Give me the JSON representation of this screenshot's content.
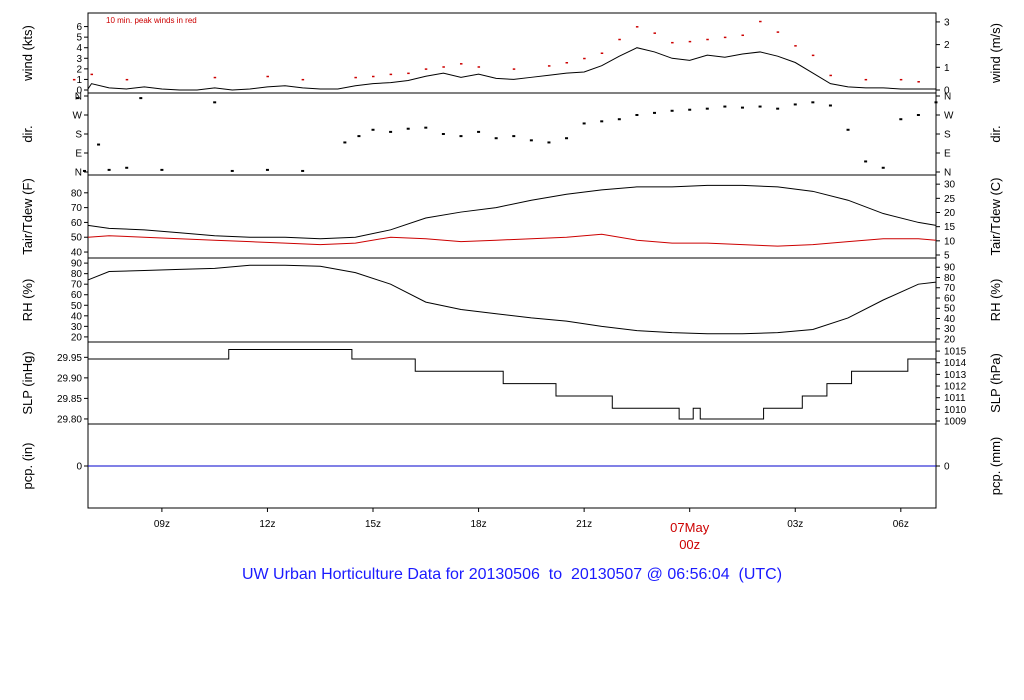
{
  "footer": {
    "title": "UW Urban Horticulture Data for 20130506  to  20130507 @ 06:56:04  (UTC)"
  },
  "chart_data": [
    {
      "type": "line",
      "id": "wind",
      "ylabel": "wind (kts)",
      "ylabel_right": "wind (m/s)",
      "ylim": [
        0,
        7
      ],
      "yticks": [
        0,
        1,
        2,
        3,
        4,
        5,
        6
      ],
      "yticks_right": [
        "0",
        "1",
        "2",
        "3"
      ],
      "annotation": "10 min. peak winds in red",
      "series": [
        {
          "name": "wind",
          "color": "#000000",
          "x": [
            6.5,
            7.0,
            7.5,
            8.0,
            8.5,
            9.0,
            9.5,
            10.0,
            10.5,
            11.0,
            11.5,
            12.0,
            12.5,
            13.0,
            13.5,
            14.0,
            14.5,
            15.0,
            15.5,
            16.0,
            16.5,
            17.0,
            17.5,
            18.0,
            18.5,
            19.0,
            19.5,
            20.0,
            20.5,
            21.0,
            21.5,
            22.0,
            22.5,
            23.0,
            23.5,
            24.0,
            24.5,
            25.0,
            25.5,
            26.0,
            26.5,
            27.0,
            27.5,
            28.0,
            28.5,
            29.0,
            29.5,
            30.0,
            30.5,
            31.0
          ],
          "y": [
            0.1,
            0.6,
            0.2,
            0.1,
            0.3,
            0.1,
            0.0,
            0.0,
            0.2,
            0.0,
            0.1,
            0.3,
            0.4,
            0.2,
            0.1,
            0.1,
            0.4,
            0.6,
            0.7,
            0.9,
            1.3,
            1.6,
            1.2,
            1.5,
            1.1,
            1.0,
            1.2,
            1.4,
            1.6,
            1.7,
            2.3,
            3.2,
            4.0,
            3.6,
            3.0,
            2.8,
            3.3,
            3.1,
            3.4,
            3.6,
            3.2,
            2.6,
            1.6,
            0.6,
            0.3,
            0.2,
            0.2,
            0.1,
            0.1,
            0.1
          ]
        },
        {
          "name": "10 min. peak winds",
          "color": "#cc0000",
          "style": "points",
          "x": [
            6.5,
            7.0,
            8.0,
            10.5,
            12.0,
            13.0,
            14.5,
            15.0,
            15.5,
            16.0,
            16.5,
            17.0,
            17.5,
            18.0,
            19.0,
            20.0,
            20.5,
            21.0,
            21.5,
            22.0,
            22.5,
            23.0,
            23.5,
            24.0,
            24.5,
            25.0,
            25.5,
            26.0,
            26.5,
            27.0,
            27.5,
            28.0,
            29.0,
            30.0,
            30.5
          ],
          "y": [
            1.0,
            1.5,
            1.0,
            1.2,
            1.3,
            1.0,
            1.2,
            1.3,
            1.5,
            1.6,
            2.0,
            2.2,
            2.5,
            2.2,
            2.0,
            2.3,
            2.6,
            3.0,
            3.5,
            4.8,
            6.0,
            5.4,
            4.5,
            4.6,
            4.8,
            5.0,
            5.2,
            6.5,
            5.5,
            4.2,
            3.3,
            1.4,
            1.0,
            1.0,
            0.8
          ]
        }
      ]
    },
    {
      "type": "scatter",
      "id": "dir",
      "ylabel": "dir.",
      "ylabel_right": "dir.",
      "ylim": [
        0,
        360
      ],
      "yticks": [
        "N",
        "E",
        "S",
        "W",
        "N"
      ],
      "series": [
        {
          "name": "direction",
          "color": "#000000",
          "x": [
            6.6,
            6.8,
            7.2,
            7.5,
            8.0,
            8.4,
            9.0,
            10.5,
            11.0,
            12.0,
            13.0,
            14.2,
            14.6,
            15.0,
            15.5,
            16.0,
            16.5,
            17.0,
            17.5,
            18.0,
            18.5,
            19.0,
            19.5,
            20.0,
            20.5,
            21.0,
            21.5,
            22.0,
            22.5,
            23.0,
            23.5,
            24.0,
            24.5,
            25.0,
            25.5,
            26.0,
            26.5,
            27.0,
            27.5,
            28.0,
            28.5,
            29.0,
            29.5,
            30.0,
            30.5,
            31.0
          ],
          "y": [
            350,
            5,
            130,
            10,
            20,
            350,
            10,
            330,
            5,
            10,
            5,
            140,
            170,
            200,
            190,
            205,
            210,
            180,
            170,
            190,
            160,
            170,
            150,
            140,
            160,
            230,
            240,
            250,
            270,
            280,
            290,
            295,
            300,
            310,
            305,
            310,
            300,
            320,
            330,
            315,
            200,
            50,
            20,
            250,
            270,
            330
          ]
        }
      ]
    },
    {
      "type": "line",
      "id": "temp",
      "ylabel": "Tair/Tdew (F)",
      "ylabel_right": "Tair/Tdew (C)",
      "ylim": [
        38,
        90
      ],
      "yticks": [
        40,
        50,
        60,
        70,
        80
      ],
      "yticks_right": [
        "5",
        "10",
        "15",
        "20",
        "25",
        "30"
      ],
      "series": [
        {
          "name": "Tair",
          "color": "#000000",
          "x": [
            6.5,
            7.5,
            8.5,
            9.5,
            10.5,
            11.5,
            12.5,
            13.5,
            14.5,
            15.5,
            16.5,
            17.5,
            18.5,
            19.5,
            20.5,
            21.5,
            22.5,
            23.5,
            24.5,
            25.5,
            26.5,
            27.5,
            28.5,
            29.5,
            30.5,
            31.0
          ],
          "y": [
            58,
            56,
            55,
            53,
            51,
            50,
            50,
            49,
            50,
            55,
            63,
            67,
            70,
            75,
            79,
            82,
            84,
            84,
            85,
            85,
            84,
            81,
            75,
            66,
            60,
            58
          ]
        },
        {
          "name": "Tdew",
          "color": "#cc0000",
          "x": [
            6.5,
            7.5,
            8.5,
            9.5,
            10.5,
            11.5,
            12.5,
            13.5,
            14.5,
            15.5,
            16.5,
            17.5,
            18.5,
            19.5,
            20.5,
            21.5,
            22.5,
            23.5,
            24.5,
            25.5,
            26.5,
            27.5,
            28.5,
            29.5,
            30.5,
            31.0
          ],
          "y": [
            50,
            51,
            50,
            49,
            48,
            47,
            46,
            45,
            46,
            50,
            49,
            47,
            48,
            49,
            50,
            52,
            48,
            46,
            46,
            45,
            44,
            45,
            47,
            49,
            49,
            48
          ]
        }
      ]
    },
    {
      "type": "line",
      "id": "rh",
      "ylabel": "RH (%)",
      "ylabel_right": "RH (%)",
      "ylim": [
        18,
        92
      ],
      "yticks": [
        20,
        30,
        40,
        50,
        60,
        70,
        80,
        90
      ],
      "yticks_right": [
        "20",
        "30",
        "40",
        "50",
        "60",
        "70",
        "80",
        "90"
      ],
      "series": [
        {
          "name": "RH",
          "color": "#000000",
          "x": [
            6.5,
            7.5,
            8.5,
            9.5,
            10.5,
            11.5,
            12.5,
            13.5,
            14.5,
            15.5,
            16.5,
            17.5,
            18.5,
            19.5,
            20.5,
            21.5,
            22.5,
            23.5,
            24.5,
            25.5,
            26.5,
            27.5,
            28.5,
            29.5,
            30.5,
            31.0
          ],
          "y": [
            74,
            82,
            83,
            84,
            85,
            88,
            88,
            87,
            81,
            70,
            53,
            46,
            42,
            38,
            35,
            30,
            26,
            24,
            23,
            23,
            24,
            27,
            38,
            55,
            70,
            72
          ]
        }
      ]
    },
    {
      "type": "line",
      "id": "slp",
      "ylabel": "SLP (inHg)",
      "ylabel_right": "SLP (hPa)",
      "ylim": [
        29.795,
        29.98
      ],
      "yticks": [
        "29.80",
        "29.85",
        "29.90",
        "29.95"
      ],
      "yticks_right": [
        "1009",
        "1010",
        "1011",
        "1012",
        "1013",
        "1014",
        "1015"
      ],
      "series": [
        {
          "name": "SLP",
          "color": "#000000",
          "style": "step",
          "x": [
            6.5,
            10.9,
            14.4,
            16.2,
            18.7,
            20.2,
            21.8,
            23.7,
            24.1,
            24.3,
            26.1,
            27.2,
            27.9,
            28.6,
            30.2,
            31.0
          ],
          "y": [
            29.946,
            29.969,
            29.946,
            29.916,
            29.886,
            29.856,
            29.826,
            29.8,
            29.826,
            29.8,
            29.826,
            29.856,
            29.886,
            29.916,
            29.946,
            29.946
          ]
        }
      ]
    },
    {
      "type": "line",
      "id": "pcp",
      "ylabel": "pcp. (in)",
      "ylabel_right": "pcp. (mm)",
      "ylim": [
        -1,
        1
      ],
      "yticks": [
        0
      ],
      "yticks_right": [
        "0"
      ],
      "series": [
        {
          "name": "pcp",
          "color": "#0000cc",
          "x": [
            6.5,
            31.0
          ],
          "y": [
            0,
            0
          ]
        }
      ]
    }
  ],
  "xaxis": {
    "range": [
      6.9,
      31.0
    ],
    "ticks": [
      9,
      12,
      15,
      18,
      21,
      24,
      27,
      30
    ],
    "tick_labels": [
      "09z",
      "12z",
      "15z",
      "18z",
      "21z",
      "00z",
      "03z",
      "06z"
    ],
    "date_label": "07May",
    "date_label_at": 24
  }
}
